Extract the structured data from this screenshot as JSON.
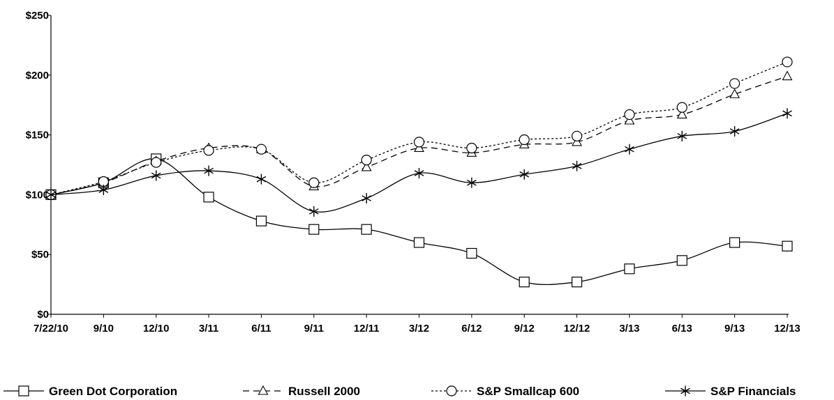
{
  "chart_data": {
    "type": "line",
    "title": "",
    "xlabel": "",
    "ylabel": "",
    "categories": [
      "7/22/10",
      "9/10",
      "12/10",
      "3/11",
      "6/11",
      "9/11",
      "12/11",
      "3/12",
      "6/12",
      "9/12",
      "12/12",
      "3/13",
      "6/13",
      "9/13",
      "12/13"
    ],
    "yticks": [
      "$0",
      "$50",
      "$100",
      "$150",
      "$200",
      "$250"
    ],
    "ylim": [
      0,
      250
    ],
    "grid": false,
    "legend_position": "bottom",
    "series": [
      {
        "name": "Green Dot Corporation",
        "marker": "square",
        "dash": "solid",
        "values": [
          100,
          110,
          130,
          98,
          78,
          71,
          71,
          60,
          51,
          27,
          27,
          38,
          45,
          60,
          57
        ]
      },
      {
        "name": "Russell 2000",
        "marker": "triangle",
        "dash": "longdash",
        "values": [
          100,
          110,
          128,
          139,
          138,
          107,
          123,
          139,
          135,
          142,
          144,
          162,
          167,
          184,
          199
        ]
      },
      {
        "name": "S&P Smallcap 600",
        "marker": "circle",
        "dash": "dotted",
        "values": [
          100,
          111,
          127,
          137,
          138,
          110,
          129,
          144,
          139,
          146,
          149,
          167,
          173,
          193,
          211
        ]
      },
      {
        "name": "S&P Financials",
        "marker": "asterisk",
        "dash": "solid",
        "values": [
          100,
          104,
          116,
          120,
          113,
          86,
          97,
          118,
          110,
          117,
          124,
          138,
          149,
          153,
          168
        ]
      }
    ]
  }
}
